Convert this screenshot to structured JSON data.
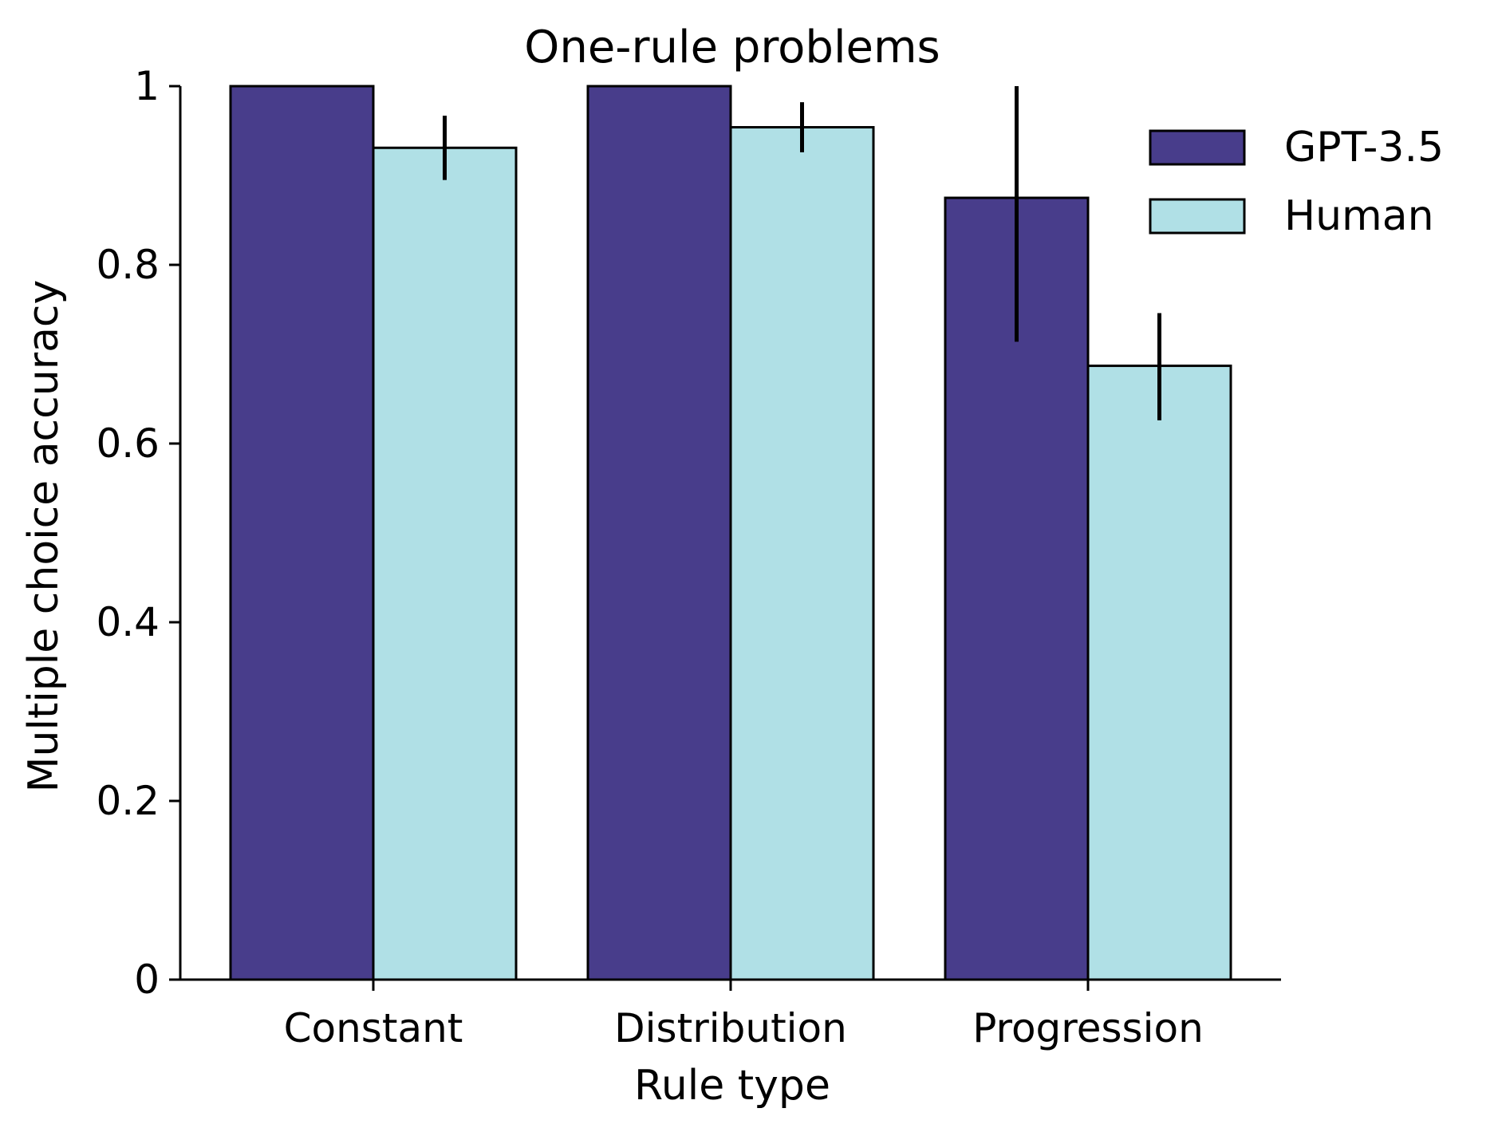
{
  "chart_data": {
    "type": "bar",
    "title": "One-rule problems",
    "xlabel": "Rule type",
    "ylabel": "Multiple choice accuracy",
    "categories": [
      "Constant",
      "Distribution",
      "Progression"
    ],
    "ylim": [
      0,
      1
    ],
    "yticks": [
      0,
      0.2,
      0.4,
      0.6,
      0.8,
      1
    ],
    "ytick_labels": [
      "0",
      "0.2",
      "0.4",
      "0.6",
      "0.8",
      "1"
    ],
    "grid": false,
    "legend_position": "top-right",
    "series": [
      {
        "name": "GPT-3.5",
        "color": "#483d8b",
        "values": [
          1.0,
          1.0,
          0.875
        ],
        "error_low": [
          1.0,
          1.0,
          0.714
        ],
        "error_high": [
          1.0,
          1.0,
          1.0
        ]
      },
      {
        "name": "Human",
        "color": "#b0e0e6",
        "values": [
          0.931,
          0.954,
          0.687
        ],
        "error_low": [
          0.895,
          0.926,
          0.626
        ],
        "error_high": [
          0.967,
          0.982,
          0.746
        ]
      }
    ]
  }
}
